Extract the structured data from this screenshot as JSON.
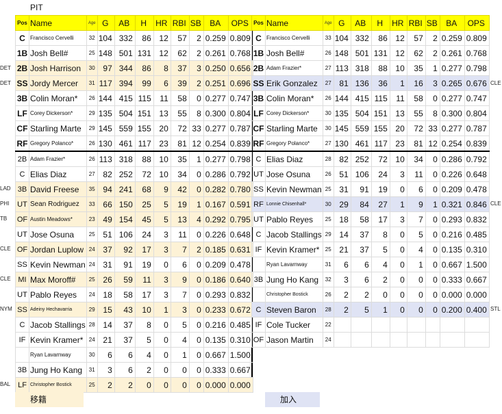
{
  "team": "PIT",
  "columns": [
    "Pos",
    "Name",
    "Age",
    "G",
    "AB",
    "H",
    "HR",
    "RBI",
    "SB",
    "BA",
    "OPS"
  ],
  "legend": {
    "left": "移籍",
    "right": "加入"
  },
  "colors": {
    "header": "#ffff00",
    "traded_out": "#fdf2d6",
    "added": "#dfe3f4",
    "divider": "#000000"
  },
  "left_table": [
    {
      "side": "",
      "pos": "C",
      "name": "Francisco Cervelli",
      "age": "32",
      "g": "104",
      "ab": "332",
      "h": "86",
      "hr": "12",
      "rbi": "57",
      "sb": "2",
      "ba": "0.259",
      "ops": "0.809",
      "hl": "",
      "starter": true,
      "name_size": "small"
    },
    {
      "side": "",
      "pos": "1B",
      "name": "Josh Bell#",
      "age": "25",
      "g": "148",
      "ab": "501",
      "h": "131",
      "hr": "12",
      "rbi": "62",
      "sb": "2",
      "ba": "0.261",
      "ops": "0.768",
      "hl": "",
      "starter": true,
      "name_size": ""
    },
    {
      "side": "DET",
      "pos": "2B",
      "name": "Josh Harrison",
      "age": "30",
      "g": "97",
      "ab": "344",
      "h": "86",
      "hr": "8",
      "rbi": "37",
      "sb": "3",
      "ba": "0.250",
      "ops": "0.656",
      "hl": "y",
      "starter": true,
      "name_size": ""
    },
    {
      "side": "DET",
      "pos": "SS",
      "name": "Jordy Mercer",
      "age": "31",
      "g": "117",
      "ab": "394",
      "h": "99",
      "hr": "6",
      "rbi": "39",
      "sb": "2",
      "ba": "0.251",
      "ops": "0.696",
      "hl": "y",
      "starter": true,
      "name_size": ""
    },
    {
      "side": "",
      "pos": "3B",
      "name": "Colin Moran*",
      "age": "26",
      "g": "144",
      "ab": "415",
      "h": "115",
      "hr": "11",
      "rbi": "58",
      "sb": "0",
      "ba": "0.277",
      "ops": "0.747",
      "hl": "",
      "starter": true,
      "name_size": ""
    },
    {
      "side": "",
      "pos": "LF",
      "name": "Corey Dickerson*",
      "age": "29",
      "g": "135",
      "ab": "504",
      "h": "151",
      "hr": "13",
      "rbi": "55",
      "sb": "8",
      "ba": "0.300",
      "ops": "0.804",
      "hl": "",
      "starter": true,
      "name_size": "small"
    },
    {
      "side": "",
      "pos": "CF",
      "name": "Starling Marte",
      "age": "29",
      "g": "145",
      "ab": "559",
      "h": "155",
      "hr": "20",
      "rbi": "72",
      "sb": "33",
      "ba": "0.277",
      "ops": "0.787",
      "hl": "",
      "starter": true,
      "name_size": ""
    },
    {
      "side": "",
      "pos": "RF",
      "name": "Gregory Polanco*",
      "age": "26",
      "g": "130",
      "ab": "461",
      "h": "117",
      "hr": "23",
      "rbi": "81",
      "sb": "12",
      "ba": "0.254",
      "ops": "0.839",
      "hl": "",
      "starter": true,
      "name_size": "small"
    },
    {
      "side": "",
      "pos": "2B",
      "name": "Adam Frazier*",
      "age": "26",
      "g": "113",
      "ab": "318",
      "h": "88",
      "hr": "10",
      "rbi": "35",
      "sb": "1",
      "ba": "0.277",
      "ops": "0.798",
      "hl": "",
      "starter": false,
      "name_size": "small"
    },
    {
      "side": "",
      "pos": "C",
      "name": "Elias Diaz",
      "age": "27",
      "g": "82",
      "ab": "252",
      "h": "72",
      "hr": "10",
      "rbi": "34",
      "sb": "0",
      "ba": "0.286",
      "ops": "0.792",
      "hl": "",
      "starter": false,
      "name_size": ""
    },
    {
      "side": "LAD",
      "pos": "3B",
      "name": "David Freese",
      "age": "35",
      "g": "94",
      "ab": "241",
      "h": "68",
      "hr": "9",
      "rbi": "42",
      "sb": "0",
      "ba": "0.282",
      "ops": "0.780",
      "hl": "y",
      "starter": false,
      "name_size": ""
    },
    {
      "side": "PHI",
      "pos": "UT",
      "name": "Sean Rodriguez",
      "age": "33",
      "g": "66",
      "ab": "150",
      "h": "25",
      "hr": "5",
      "rbi": "19",
      "sb": "1",
      "ba": "0.167",
      "ops": "0.591",
      "hl": "y",
      "starter": false,
      "name_size": "mid"
    },
    {
      "side": "TB",
      "pos": "OF",
      "name": "Austin Meadows*",
      "age": "23",
      "g": "49",
      "ab": "154",
      "h": "45",
      "hr": "5",
      "rbi": "13",
      "sb": "4",
      "ba": "0.292",
      "ops": "0.795",
      "hl": "y",
      "starter": false,
      "name_size": "small"
    },
    {
      "side": "",
      "pos": "UT",
      "name": "Jose Osuna",
      "age": "25",
      "g": "51",
      "ab": "106",
      "h": "24",
      "hr": "3",
      "rbi": "11",
      "sb": "0",
      "ba": "0.226",
      "ops": "0.648",
      "hl": "",
      "starter": false,
      "name_size": ""
    },
    {
      "side": "CLE",
      "pos": "OF",
      "name": "Jordan Luplow",
      "age": "24",
      "g": "37",
      "ab": "92",
      "h": "17",
      "hr": "3",
      "rbi": "7",
      "sb": "2",
      "ba": "0.185",
      "ops": "0.631",
      "hl": "y",
      "starter": false,
      "name_size": ""
    },
    {
      "side": "",
      "pos": "SS",
      "name": "Kevin Newman",
      "age": "24",
      "g": "31",
      "ab": "91",
      "h": "19",
      "hr": "0",
      "rbi": "6",
      "sb": "0",
      "ba": "0.209",
      "ops": "0.478",
      "hl": "",
      "starter": false,
      "name_size": ""
    },
    {
      "side": "CLE",
      "pos": "MI",
      "name": "Max Moroff#",
      "age": "25",
      "g": "26",
      "ab": "59",
      "h": "11",
      "hr": "3",
      "rbi": "9",
      "sb": "0",
      "ba": "0.186",
      "ops": "0.640",
      "hl": "y",
      "starter": false,
      "name_size": ""
    },
    {
      "side": "",
      "pos": "UT",
      "name": "Pablo Reyes",
      "age": "24",
      "g": "18",
      "ab": "58",
      "h": "17",
      "hr": "3",
      "rbi": "7",
      "sb": "0",
      "ba": "0.293",
      "ops": "0.832",
      "hl": "",
      "starter": false,
      "name_size": ""
    },
    {
      "side": "NYM",
      "pos": "SS",
      "name": "Adeiny Hechavarria",
      "age": "29",
      "g": "15",
      "ab": "43",
      "h": "10",
      "hr": "1",
      "rbi": "3",
      "sb": "0",
      "ba": "0.233",
      "ops": "0.672",
      "hl": "y",
      "starter": false,
      "name_size": "tiny"
    },
    {
      "side": "",
      "pos": "C",
      "name": "Jacob Stallings",
      "age": "28",
      "g": "14",
      "ab": "37",
      "h": "8",
      "hr": "0",
      "rbi": "5",
      "sb": "0",
      "ba": "0.216",
      "ops": "0.485",
      "hl": "",
      "starter": false,
      "name_size": ""
    },
    {
      "side": "",
      "pos": "IF",
      "name": "Kevin Kramer*",
      "age": "24",
      "g": "21",
      "ab": "37",
      "h": "5",
      "hr": "0",
      "rbi": "4",
      "sb": "0",
      "ba": "0.135",
      "ops": "0.310",
      "hl": "",
      "starter": false,
      "name_size": ""
    },
    {
      "side": "",
      "pos": "",
      "name": "Ryan Lavarnway",
      "age": "30",
      "g": "6",
      "ab": "6",
      "h": "4",
      "hr": "0",
      "rbi": "1",
      "sb": "0",
      "ba": "0.667",
      "ops": "1.500",
      "hl": "",
      "starter": false,
      "name_size": "small"
    },
    {
      "side": "",
      "pos": "3B",
      "name": "Jung Ho Kang",
      "age": "31",
      "g": "3",
      "ab": "6",
      "h": "2",
      "hr": "0",
      "rbi": "0",
      "sb": "0",
      "ba": "0.333",
      "ops": "0.667",
      "hl": "",
      "starter": false,
      "name_size": ""
    },
    {
      "side": "BAL",
      "pos": "LF",
      "name": "Christopher Bostick",
      "age": "25",
      "g": "2",
      "ab": "2",
      "h": "0",
      "hr": "0",
      "rbi": "0",
      "sb": "0",
      "ba": "0.000",
      "ops": "0.000",
      "hl": "y",
      "starter": false,
      "name_size": "tiny"
    }
  ],
  "right_table": [
    {
      "side": "",
      "pos": "C",
      "name": "Francisco Cervelli",
      "age": "33",
      "g": "104",
      "ab": "332",
      "h": "86",
      "hr": "12",
      "rbi": "57",
      "sb": "2",
      "ba": "0.259",
      "ops": "0.809",
      "hl": "",
      "starter": true,
      "name_size": "small"
    },
    {
      "side": "",
      "pos": "1B",
      "name": "Josh Bell#",
      "age": "26",
      "g": "148",
      "ab": "501",
      "h": "131",
      "hr": "12",
      "rbi": "62",
      "sb": "2",
      "ba": "0.261",
      "ops": "0.768",
      "hl": "",
      "starter": true,
      "name_size": ""
    },
    {
      "side": "",
      "pos": "2B",
      "name": "Adam Frazier*",
      "age": "27",
      "g": "113",
      "ab": "318",
      "h": "88",
      "hr": "10",
      "rbi": "35",
      "sb": "1",
      "ba": "0.277",
      "ops": "0.798",
      "hl": "",
      "starter": true,
      "name_size": "small"
    },
    {
      "side": "CLE",
      "pos": "SS",
      "name": "Erik Gonzalez",
      "age": "27",
      "g": "81",
      "ab": "136",
      "h": "36",
      "hr": "1",
      "rbi": "16",
      "sb": "3",
      "ba": "0.265",
      "ops": "0.676",
      "hl": "b",
      "starter": true,
      "name_size": ""
    },
    {
      "side": "",
      "pos": "3B",
      "name": "Colin Moran*",
      "age": "26",
      "g": "144",
      "ab": "415",
      "h": "115",
      "hr": "11",
      "rbi": "58",
      "sb": "0",
      "ba": "0.277",
      "ops": "0.747",
      "hl": "",
      "starter": true,
      "name_size": ""
    },
    {
      "side": "",
      "pos": "LF",
      "name": "Corey Dickerson*",
      "age": "30",
      "g": "135",
      "ab": "504",
      "h": "151",
      "hr": "13",
      "rbi": "55",
      "sb": "8",
      "ba": "0.300",
      "ops": "0.804",
      "hl": "",
      "starter": true,
      "name_size": "small"
    },
    {
      "side": "",
      "pos": "CF",
      "name": "Starling Marte",
      "age": "30",
      "g": "145",
      "ab": "559",
      "h": "155",
      "hr": "20",
      "rbi": "72",
      "sb": "33",
      "ba": "0.277",
      "ops": "0.787",
      "hl": "",
      "starter": true,
      "name_size": ""
    },
    {
      "side": "",
      "pos": "RF",
      "name": "Gregory Polanco*",
      "age": "27",
      "g": "130",
      "ab": "461",
      "h": "117",
      "hr": "23",
      "rbi": "81",
      "sb": "12",
      "ba": "0.254",
      "ops": "0.839",
      "hl": "",
      "starter": true,
      "name_size": "small"
    },
    {
      "side": "",
      "pos": "C",
      "name": "Elias Diaz",
      "age": "28",
      "g": "82",
      "ab": "252",
      "h": "72",
      "hr": "10",
      "rbi": "34",
      "sb": "0",
      "ba": "0.286",
      "ops": "0.792",
      "hl": "",
      "starter": false,
      "name_size": ""
    },
    {
      "side": "",
      "pos": "UT",
      "name": "Jose Osuna",
      "age": "26",
      "g": "51",
      "ab": "106",
      "h": "24",
      "hr": "3",
      "rbi": "11",
      "sb": "0",
      "ba": "0.226",
      "ops": "0.648",
      "hl": "",
      "starter": false,
      "name_size": ""
    },
    {
      "side": "",
      "pos": "SS",
      "name": "Kevin Newman",
      "age": "25",
      "g": "31",
      "ab": "91",
      "h": "19",
      "hr": "0",
      "rbi": "6",
      "sb": "0",
      "ba": "0.209",
      "ops": "0.478",
      "hl": "",
      "starter": false,
      "name_size": ""
    },
    {
      "side": "CLE",
      "pos": "RF",
      "name": "Lonnie Chisenhall*",
      "age": "30",
      "g": "29",
      "ab": "84",
      "h": "27",
      "hr": "1",
      "rbi": "9",
      "sb": "1",
      "ba": "0.321",
      "ops": "0.846",
      "hl": "b",
      "starter": false,
      "name_size": "tiny"
    },
    {
      "side": "",
      "pos": "UT",
      "name": "Pablo Reyes",
      "age": "25",
      "g": "18",
      "ab": "58",
      "h": "17",
      "hr": "3",
      "rbi": "7",
      "sb": "0",
      "ba": "0.293",
      "ops": "0.832",
      "hl": "",
      "starter": false,
      "name_size": ""
    },
    {
      "side": "",
      "pos": "C",
      "name": "Jacob Stallings",
      "age": "29",
      "g": "14",
      "ab": "37",
      "h": "8",
      "hr": "0",
      "rbi": "5",
      "sb": "0",
      "ba": "0.216",
      "ops": "0.485",
      "hl": "",
      "starter": false,
      "name_size": ""
    },
    {
      "side": "",
      "pos": "IF",
      "name": "Kevin Kramer*",
      "age": "25",
      "g": "21",
      "ab": "37",
      "h": "5",
      "hr": "0",
      "rbi": "4",
      "sb": "0",
      "ba": "0.135",
      "ops": "0.310",
      "hl": "",
      "starter": false,
      "name_size": ""
    },
    {
      "side": "",
      "pos": "",
      "name": "Ryan Lavarnway",
      "age": "31",
      "g": "6",
      "ab": "6",
      "h": "4",
      "hr": "0",
      "rbi": "1",
      "sb": "0",
      "ba": "0.667",
      "ops": "1.500",
      "hl": "",
      "starter": false,
      "name_size": "small"
    },
    {
      "side": "",
      "pos": "3B",
      "name": "Jung Ho Kang",
      "age": "32",
      "g": "3",
      "ab": "6",
      "h": "2",
      "hr": "0",
      "rbi": "0",
      "sb": "0",
      "ba": "0.333",
      "ops": "0.667",
      "hl": "",
      "starter": false,
      "name_size": ""
    },
    {
      "side": "",
      "pos": "",
      "name": "Christopher Bostick",
      "age": "26",
      "g": "2",
      "ab": "2",
      "h": "0",
      "hr": "0",
      "rbi": "0",
      "sb": "0",
      "ba": "0.000",
      "ops": "0.000",
      "hl": "",
      "starter": false,
      "name_size": "tiny"
    },
    {
      "side": "STL",
      "pos": "C",
      "name": "Steven Baron",
      "age": "28",
      "g": "2",
      "ab": "5",
      "h": "1",
      "hr": "0",
      "rbi": "0",
      "sb": "0",
      "ba": "0.200",
      "ops": "0.400",
      "hl": "b",
      "starter": false,
      "name_size": ""
    },
    {
      "side": "",
      "pos": "IF",
      "name": "Cole Tucker",
      "age": "22",
      "g": "",
      "ab": "",
      "h": "",
      "hr": "",
      "rbi": "",
      "sb": "",
      "ba": "",
      "ops": "",
      "hl": "",
      "starter": false,
      "name_size": ""
    },
    {
      "side": "",
      "pos": "OF",
      "name": "Jason Martin",
      "age": "24",
      "g": "",
      "ab": "",
      "h": "",
      "hr": "",
      "rbi": "",
      "sb": "",
      "ba": "",
      "ops": "",
      "hl": "",
      "starter": false,
      "name_size": ""
    }
  ]
}
